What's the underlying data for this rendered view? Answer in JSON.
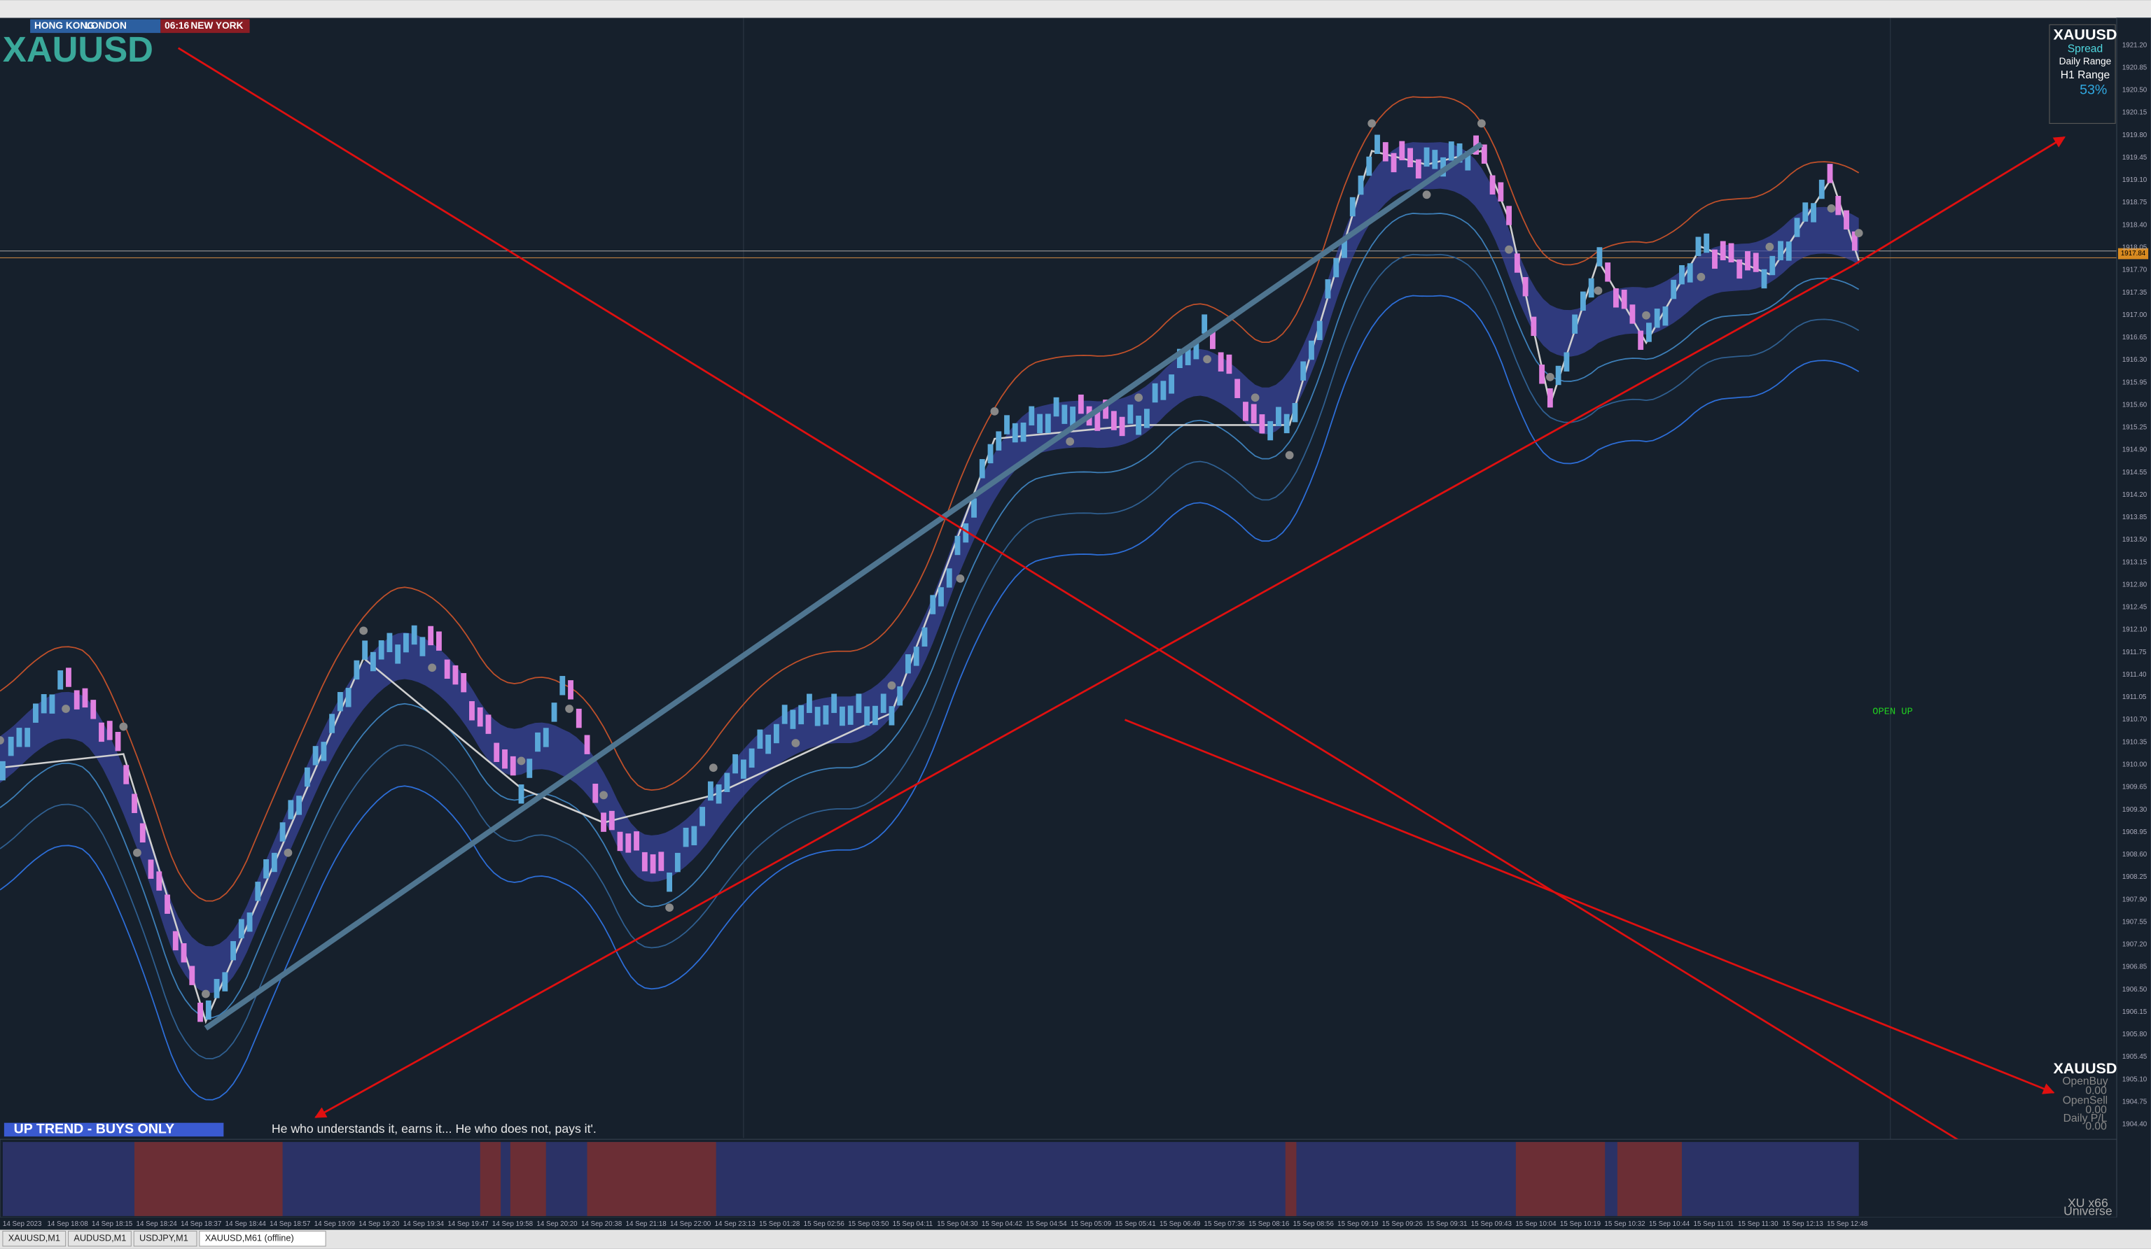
{
  "sessions": [
    "HONG KONG",
    "LONDON",
    "06:16",
    "NEW YORK"
  ],
  "symbol": "XAUUSD",
  "price_axis": [
    "1921.20",
    "1920.85",
    "1920.50",
    "1920.15",
    "1919.80",
    "1919.45",
    "1919.10",
    "1918.75",
    "1918.40",
    "1918.05",
    "1917.70",
    "1917.35",
    "1917.00",
    "1916.65",
    "1916.30",
    "1915.95",
    "1915.60",
    "1915.25",
    "1914.90",
    "1914.55",
    "1914.20",
    "1913.85",
    "1913.50",
    "1913.15",
    "1912.80",
    "1912.45",
    "1912.10",
    "1911.75",
    "1911.40",
    "1911.05",
    "1910.70",
    "1910.35",
    "1910.00",
    "1909.65",
    "1909.30",
    "1908.95",
    "1908.60",
    "1908.25",
    "1907.90",
    "1907.55",
    "1907.20",
    "1906.85",
    "1906.50",
    "1906.15",
    "1905.80",
    "1905.45",
    "1905.10",
    "1904.75",
    "1904.40"
  ],
  "time_axis": [
    "14 Sep 2023",
    "14 Sep 18:08",
    "14 Sep 18:15",
    "14 Sep 18:24",
    "14 Sep 18:37",
    "14 Sep 18:44",
    "14 Sep 18:57",
    "14 Sep 19:09",
    "14 Sep 19:20",
    "14 Sep 19:34",
    "14 Sep 19:47",
    "14 Sep 19:58",
    "14 Sep 20:20",
    "14 Sep 20:38",
    "14 Sep 21:18",
    "14 Sep 22:00",
    "14 Sep 23:13",
    "15 Sep 01:28",
    "15 Sep 02:56",
    "15 Sep 03:50",
    "15 Sep 04:11",
    "15 Sep 04:30",
    "15 Sep 04:42",
    "15 Sep 04:54",
    "15 Sep 05:09",
    "15 Sep 05:41",
    "15 Sep 06:49",
    "15 Sep 07:36",
    "15 Sep 08:16",
    "15 Sep 08:56",
    "15 Sep 09:19",
    "15 Sep 09:26",
    "15 Sep 09:31",
    "15 Sep 09:43",
    "15 Sep 10:04",
    "15 Sep 10:19",
    "15 Sep 10:32",
    "15 Sep 10:44",
    "15 Sep 11:01",
    "15 Sep 11:30",
    "15 Sep 12:13",
    "15 Sep 12:48"
  ],
  "current_price": "1917.84",
  "signal": "OPEN UP",
  "trend_banner": "UP TREND - BUYS ONLY",
  "quote": "He who understands it, earns it... He who does not, pays it'.",
  "info_panel": {
    "symbol": "XAUUSD",
    "spread": "Spread",
    "daily_range": "Daily Range",
    "h1_range": "H1 Range",
    "percent": "53%"
  },
  "trade_panel": {
    "symbol": "XAUUSD",
    "open_buy": "OpenBuy",
    "open_buy_value": "0.00",
    "open_sell": "OpenSell",
    "open_sell_value": "0.00",
    "daily_pl": "Daily P/L",
    "daily_pl_value": "0.00"
  },
  "footer": {
    "account": "XU x66",
    "label": "Universe"
  },
  "tabs": [
    "XAUUSD,M1",
    "AUDUSD,M1",
    "USDJPY,M1",
    "XAUUSD,M61 (offline)"
  ]
}
